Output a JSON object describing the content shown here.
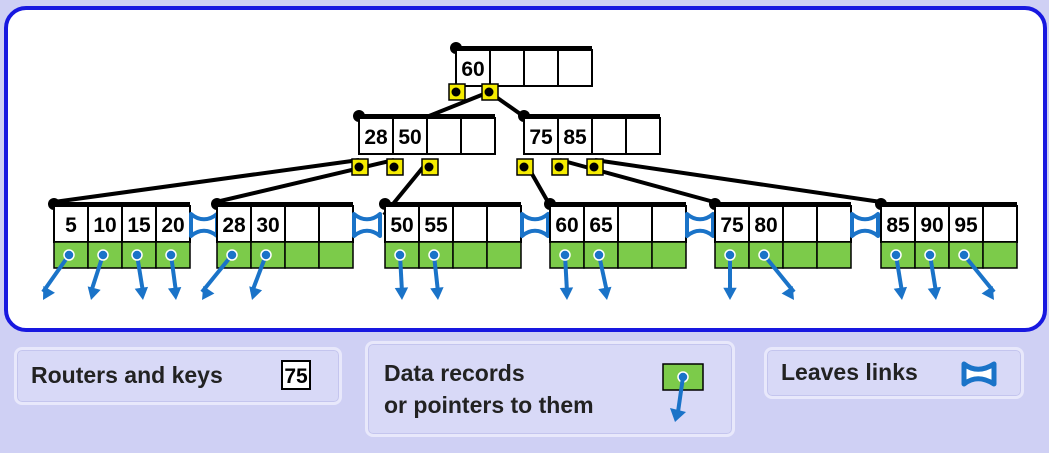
{
  "tree": {
    "root": {
      "keys": [
        "60",
        "",
        "",
        ""
      ]
    },
    "internal": [
      {
        "keys": [
          "28",
          "50",
          "",
          ""
        ]
      },
      {
        "keys": [
          "75",
          "85",
          "",
          ""
        ]
      }
    ],
    "leaves": [
      {
        "keys": [
          "5",
          "10",
          "15",
          "20"
        ]
      },
      {
        "keys": [
          "28",
          "30",
          "",
          ""
        ]
      },
      {
        "keys": [
          "50",
          "55",
          "",
          ""
        ]
      },
      {
        "keys": [
          "60",
          "65",
          "",
          ""
        ]
      },
      {
        "keys": [
          "75",
          "80",
          "",
          ""
        ]
      },
      {
        "keys": [
          "85",
          "90",
          "95",
          ""
        ]
      }
    ]
  },
  "legend": {
    "routers_label": "Routers and keys",
    "routers_sample": "75",
    "records_line1": "Data records",
    "records_line2": "or pointers to them",
    "links_label": "Leaves links"
  },
  "colors": {
    "panel_border": "#1818e0",
    "background": "#cfd0f4",
    "record_green": "#7ccb4a",
    "router_yellow": "#f5ec00",
    "arrow_blue": "#1a73c8",
    "link_blue": "#1a73c8"
  }
}
